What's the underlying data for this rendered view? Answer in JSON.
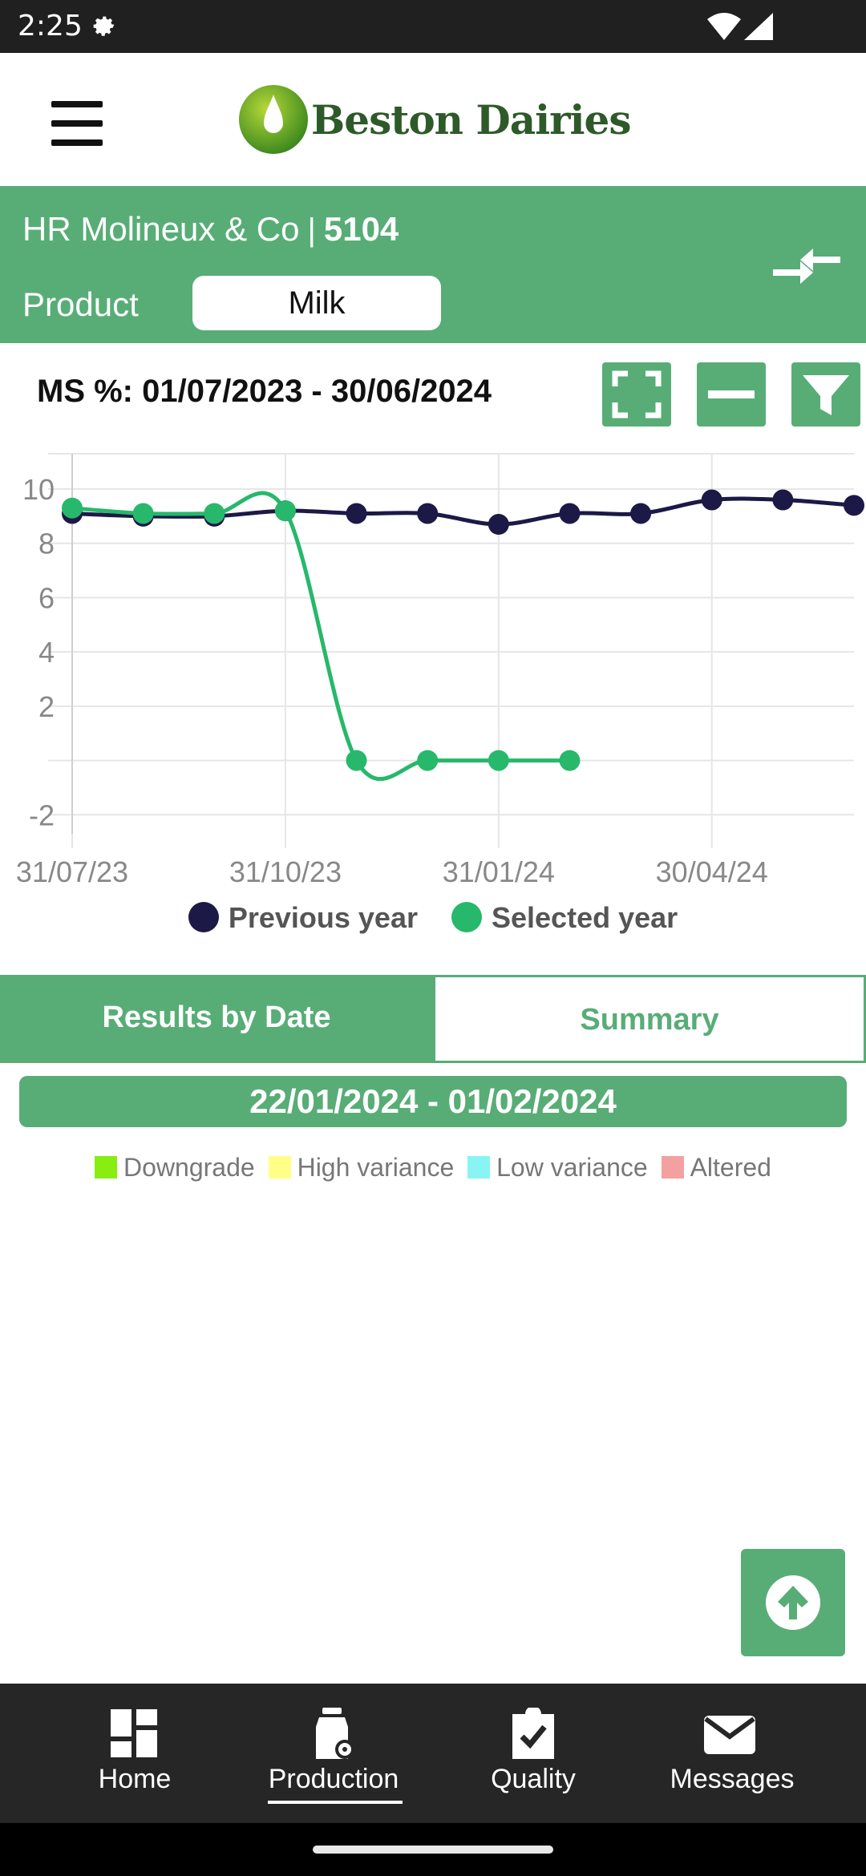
{
  "status_bar": {
    "time": "2:25"
  },
  "header": {
    "logo_text": "Beston Dairies"
  },
  "farm": {
    "name": "HR Molineux & Co",
    "separator": "|",
    "number": "5104",
    "product_label": "Product",
    "product_value": "Milk"
  },
  "chart_section": {
    "title": "MS %: 01/07/2023 - 30/06/2024"
  },
  "chart_data": {
    "type": "line",
    "x_tick_labels": [
      "31/07/23",
      "31/10/23",
      "31/01/24",
      "30/04/24"
    ],
    "y_tick_labels": [
      "10",
      "8",
      "6",
      "4",
      "2",
      "-2"
    ],
    "ylim": [
      -2.7,
      11.3
    ],
    "grid": true,
    "legend_position": "bottom",
    "series": [
      {
        "name": "Previous year",
        "color": "#1c1947",
        "x": [
          "31/07/23",
          "31/08/23",
          "30/09/23",
          "31/10/23",
          "30/11/23",
          "31/12/23",
          "31/01/24",
          "29/02/24",
          "31/03/24",
          "30/04/24",
          "31/05/24",
          "30/06/24"
        ],
        "values": [
          9.1,
          9.0,
          9.0,
          9.2,
          9.1,
          9.1,
          8.7,
          9.1,
          9.1,
          9.6,
          9.6,
          9.4
        ]
      },
      {
        "name": "Selected year",
        "color": "#27b86b",
        "x": [
          "31/07/23",
          "31/08/23",
          "30/09/23",
          "31/10/23",
          "30/11/23",
          "31/12/23",
          "31/01/24",
          "29/02/24"
        ],
        "values": [
          9.3,
          9.1,
          9.1,
          9.2,
          0.0,
          0.0,
          0.0,
          0.0
        ]
      }
    ]
  },
  "tabs": {
    "results_by_date": "Results by Date",
    "summary": "Summary"
  },
  "date_range": "22/01/2024 - 01/02/2024",
  "variance_legend": [
    {
      "label": "Downgrade",
      "color": "#88ee11"
    },
    {
      "label": "High variance",
      "color": "#ffff88"
    },
    {
      "label": "Low variance",
      "color": "#88f4f4"
    },
    {
      "label": "Altered",
      "color": "#f4a0a0"
    }
  ],
  "bottom_nav": [
    {
      "label": "Home",
      "icon": "dashboard-icon"
    },
    {
      "label": "Production",
      "icon": "milk-bottle-icon"
    },
    {
      "label": "Quality",
      "icon": "clipboard-check-icon"
    },
    {
      "label": "Messages",
      "icon": "envelope-icon"
    }
  ],
  "colors": {
    "brand_green": "#58ad77",
    "previous_year": "#1c1947",
    "selected_year": "#27b86b"
  }
}
